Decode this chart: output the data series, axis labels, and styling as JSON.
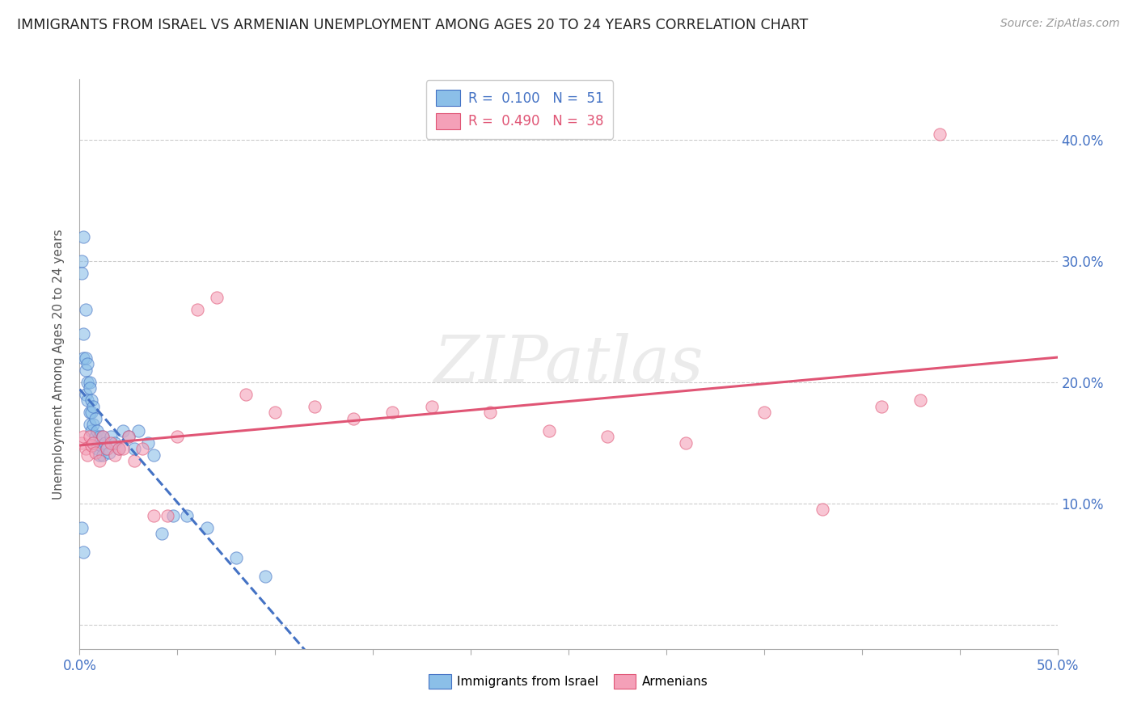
{
  "title": "IMMIGRANTS FROM ISRAEL VS ARMENIAN UNEMPLOYMENT AMONG AGES 20 TO 24 YEARS CORRELATION CHART",
  "source": "Source: ZipAtlas.com",
  "ylabel": "Unemployment Among Ages 20 to 24 years",
  "xlim": [
    0.0,
    0.5
  ],
  "ylim": [
    -0.02,
    0.45
  ],
  "legend_israel_r": "0.100",
  "legend_israel_n": "51",
  "legend_armenian_r": "0.490",
  "legend_armenian_n": "38",
  "color_israel": "#8bbfe8",
  "color_armenian": "#f4a0b8",
  "color_israel_line": "#4472c4",
  "color_armenian_line": "#e05575",
  "israel_x": [
    0.001,
    0.001,
    0.001,
    0.002,
    0.002,
    0.002,
    0.002,
    0.003,
    0.003,
    0.003,
    0.003,
    0.004,
    0.004,
    0.004,
    0.005,
    0.005,
    0.005,
    0.005,
    0.006,
    0.006,
    0.006,
    0.007,
    0.007,
    0.007,
    0.008,
    0.008,
    0.009,
    0.009,
    0.01,
    0.01,
    0.011,
    0.012,
    0.012,
    0.013,
    0.014,
    0.015,
    0.016,
    0.018,
    0.02,
    0.022,
    0.025,
    0.028,
    0.03,
    0.035,
    0.038,
    0.042,
    0.048,
    0.055,
    0.065,
    0.08,
    0.095
  ],
  "israel_y": [
    0.3,
    0.29,
    0.08,
    0.32,
    0.24,
    0.22,
    0.06,
    0.26,
    0.22,
    0.21,
    0.19,
    0.215,
    0.2,
    0.185,
    0.2,
    0.195,
    0.175,
    0.165,
    0.185,
    0.175,
    0.16,
    0.18,
    0.165,
    0.15,
    0.17,
    0.155,
    0.16,
    0.145,
    0.155,
    0.14,
    0.148,
    0.155,
    0.14,
    0.15,
    0.145,
    0.142,
    0.155,
    0.15,
    0.145,
    0.16,
    0.155,
    0.145,
    0.16,
    0.15,
    0.14,
    0.075,
    0.09,
    0.09,
    0.08,
    0.055,
    0.04
  ],
  "armenian_x": [
    0.001,
    0.002,
    0.003,
    0.004,
    0.005,
    0.006,
    0.007,
    0.008,
    0.01,
    0.012,
    0.014,
    0.016,
    0.018,
    0.02,
    0.022,
    0.025,
    0.028,
    0.032,
    0.038,
    0.045,
    0.05,
    0.06,
    0.07,
    0.085,
    0.1,
    0.12,
    0.14,
    0.16,
    0.18,
    0.21,
    0.24,
    0.27,
    0.31,
    0.35,
    0.38,
    0.41,
    0.43,
    0.44
  ],
  "armenian_y": [
    0.15,
    0.155,
    0.145,
    0.14,
    0.155,
    0.148,
    0.15,
    0.142,
    0.135,
    0.155,
    0.145,
    0.15,
    0.14,
    0.145,
    0.145,
    0.155,
    0.135,
    0.145,
    0.09,
    0.09,
    0.155,
    0.26,
    0.27,
    0.19,
    0.175,
    0.18,
    0.17,
    0.175,
    0.18,
    0.175,
    0.16,
    0.155,
    0.15,
    0.175,
    0.095,
    0.18,
    0.185,
    0.405
  ]
}
